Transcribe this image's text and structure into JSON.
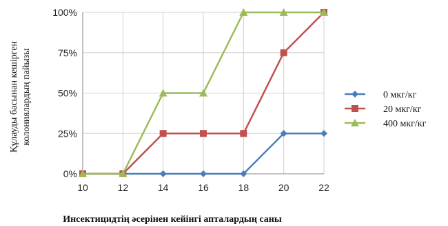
{
  "chart_data": {
    "type": "line",
    "title": "",
    "xlabel": "Инсектицидтің әсерінен кейінгі апталардың саны",
    "ylabel_lines": [
      "Құлауды басынан кешірген",
      "колониялардың пайызы"
    ],
    "x": [
      10,
      12,
      14,
      16,
      18,
      20,
      22
    ],
    "xlim": [
      10,
      22
    ],
    "ylim": [
      0,
      100
    ],
    "yticks": [
      0,
      25,
      50,
      75,
      100
    ],
    "ytick_labels": [
      "0%",
      "25%",
      "50%",
      "75%",
      "100%"
    ],
    "grid": true,
    "legend_position": "right",
    "series": [
      {
        "name": "0 мкг/кг",
        "color": "#4a7ebb",
        "marker": "diamond",
        "values": [
          0,
          0,
          0,
          0,
          0,
          25,
          25
        ]
      },
      {
        "name": "20 мкг/кг",
        "color": "#c0504d",
        "marker": "square",
        "values": [
          0,
          0,
          25,
          25,
          25,
          75,
          100
        ]
      },
      {
        "name": "400 мкг/кг",
        "color": "#9bbb59",
        "marker": "triangle",
        "values": [
          0,
          0,
          50,
          50,
          100,
          100,
          100
        ]
      }
    ]
  }
}
